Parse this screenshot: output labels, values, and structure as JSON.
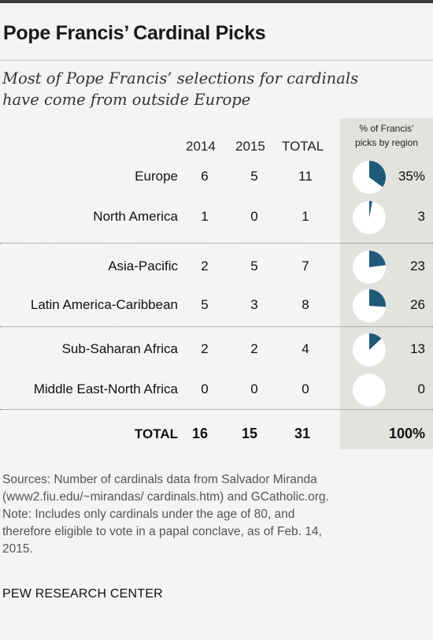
{
  "header": {
    "title": "Pope Francis’ Cardinal Picks",
    "subtitle_line1": "Most of Pope Francis’ selections for cardinals",
    "subtitle_line2": "have come from outside Europe"
  },
  "columns": {
    "y2014": "2014",
    "y2015": "2015",
    "total": "TOTAL",
    "pct_line1": "% of Francis’",
    "pct_line2": "picks by region"
  },
  "colors": {
    "pie_fill": "#1f5a7a",
    "pie_bg": "#ffffff"
  },
  "chart_data": {
    "type": "table",
    "title": "Pope Francis’ Cardinal Picks",
    "rows": [
      {
        "region": "Europe",
        "y2014": "6",
        "y2015": "5",
        "total": "11",
        "pct": 35,
        "pct_label": "35%"
      },
      {
        "region": "North America",
        "y2014": "1",
        "y2015": "0",
        "total": "1",
        "pct": 3,
        "pct_label": "3"
      },
      {
        "region": "Asia-Pacific",
        "y2014": "2",
        "y2015": "5",
        "total": "7",
        "pct": 23,
        "pct_label": "23"
      },
      {
        "region": "Latin America-Caribbean",
        "y2014": "5",
        "y2015": "3",
        "total": "8",
        "pct": 26,
        "pct_label": "26"
      },
      {
        "region": "Sub-Saharan Africa",
        "y2014": "2",
        "y2015": "2",
        "total": "4",
        "pct": 13,
        "pct_label": "13"
      },
      {
        "region": "Middle East-North Africa",
        "y2014": "0",
        "y2015": "0",
        "total": "0",
        "pct": 0,
        "pct_label": "0"
      }
    ],
    "totals": {
      "label": "TOTAL",
      "y2014": "16",
      "y2015": "15",
      "total": "31",
      "pct_label": "100%"
    }
  },
  "notes": {
    "line1": "Sources: Number of cardinals data from Salvador Miranda",
    "line2": "(www2.fiu.edu/~mirandas/ cardinals.htm) and GCatholic.org.",
    "line3": "Note: Includes only cardinals under the age of 80, and",
    "line4": "therefore eligible to vote in a papal conclave, as of Feb. 14,",
    "line5": "2015."
  },
  "footer": {
    "org": "PEW RESEARCH CENTER"
  }
}
